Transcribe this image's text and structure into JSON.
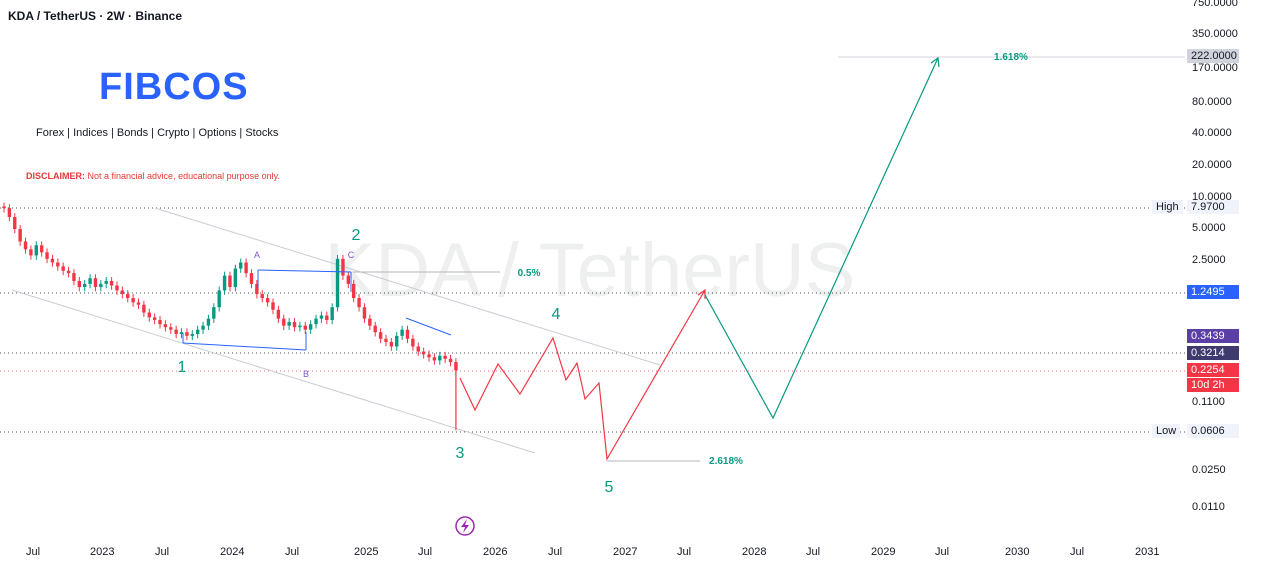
{
  "header": {
    "title": "KDA / TetherUS · 2W · Binance",
    "logo": "FIBCOS",
    "markets": "Forex | Indices | Bonds | Crypto | Options | Stocks",
    "disclaimer_label": "DISCLAIMER:",
    "disclaimer_text": "Not a financial advice, educational purpose only."
  },
  "watermark": "KDA / TetherUS",
  "colors": {
    "up": "#089981",
    "down": "#f23645",
    "projection_down": "#f23645",
    "projection_up": "#089981",
    "channel": "#c8ccd3",
    "abc_lines": "#2962ff",
    "wave_labels": "#089981",
    "abc_labels": "#7e57c2"
  },
  "chart_data": {
    "type": "candlestick",
    "interval": "2W",
    "symbol": "KDA / TetherUS",
    "exchange": "Binance",
    "y_scale": "log",
    "y_tick_labels": [
      "750.0000",
      "350.0000",
      "170.0000",
      "80.0000",
      "40.0000",
      "20.0000",
      "10.0000",
      "5.0000",
      "2.5000",
      "0.1100",
      "0.0250",
      "0.0110"
    ],
    "x_tick_labels": [
      "Jul",
      "2023",
      "Jul",
      "2024",
      "Jul",
      "2025",
      "Jul",
      "2026",
      "Jul",
      "2027",
      "Jul",
      "2028",
      "Jul",
      "2029",
      "Jul",
      "2030",
      "Jul",
      "2031"
    ],
    "price_tags": [
      {
        "label": "",
        "value": "222.0000",
        "style": "gray"
      },
      {
        "label": "High",
        "value": "7.9700",
        "style": "light"
      },
      {
        "label": "",
        "value": "1.2495",
        "style": "blue"
      },
      {
        "label": "",
        "value": "0.3439",
        "style": "purple"
      },
      {
        "label": "",
        "value": "0.3214",
        "style": "dark"
      },
      {
        "label": "",
        "value": "0.2254",
        "style": "red",
        "sub": "10d 2h"
      },
      {
        "label": "Low",
        "value": "0.0606",
        "style": "light"
      }
    ],
    "wave_labels": [
      "1",
      "2",
      "3",
      "4",
      "5"
    ],
    "abc_labels": [
      "A",
      "B",
      "C"
    ],
    "fib_labels": [
      "0.5%",
      "2.618%",
      "1.618%"
    ],
    "candles_close": [
      7.9,
      6.5,
      5.0,
      3.8,
      3.2,
      2.8,
      3.5,
      3.0,
      2.6,
      2.4,
      2.2,
      2.0,
      1.9,
      1.6,
      1.4,
      1.5,
      1.7,
      1.4,
      1.5,
      1.6,
      1.45,
      1.3,
      1.2,
      1.1,
      1.0,
      0.95,
      0.8,
      0.72,
      0.68,
      0.62,
      0.58,
      0.55,
      0.5,
      0.52,
      0.48,
      0.5,
      0.55,
      0.6,
      0.7,
      0.9,
      1.3,
      1.8,
      1.4,
      2.1,
      2.4,
      1.9,
      1.5,
      1.2,
      1.1,
      1.0,
      0.85,
      0.7,
      0.6,
      0.65,
      0.58,
      0.6,
      0.55,
      0.62,
      0.7,
      0.75,
      0.68,
      0.9,
      2.6,
      1.8,
      1.5,
      1.1,
      0.9,
      0.7,
      0.6,
      0.52,
      0.45,
      0.42,
      0.38,
      0.48,
      0.55,
      0.45,
      0.38,
      0.34,
      0.32,
      0.3,
      0.28,
      0.31,
      0.29,
      0.27,
      0.2254
    ]
  }
}
